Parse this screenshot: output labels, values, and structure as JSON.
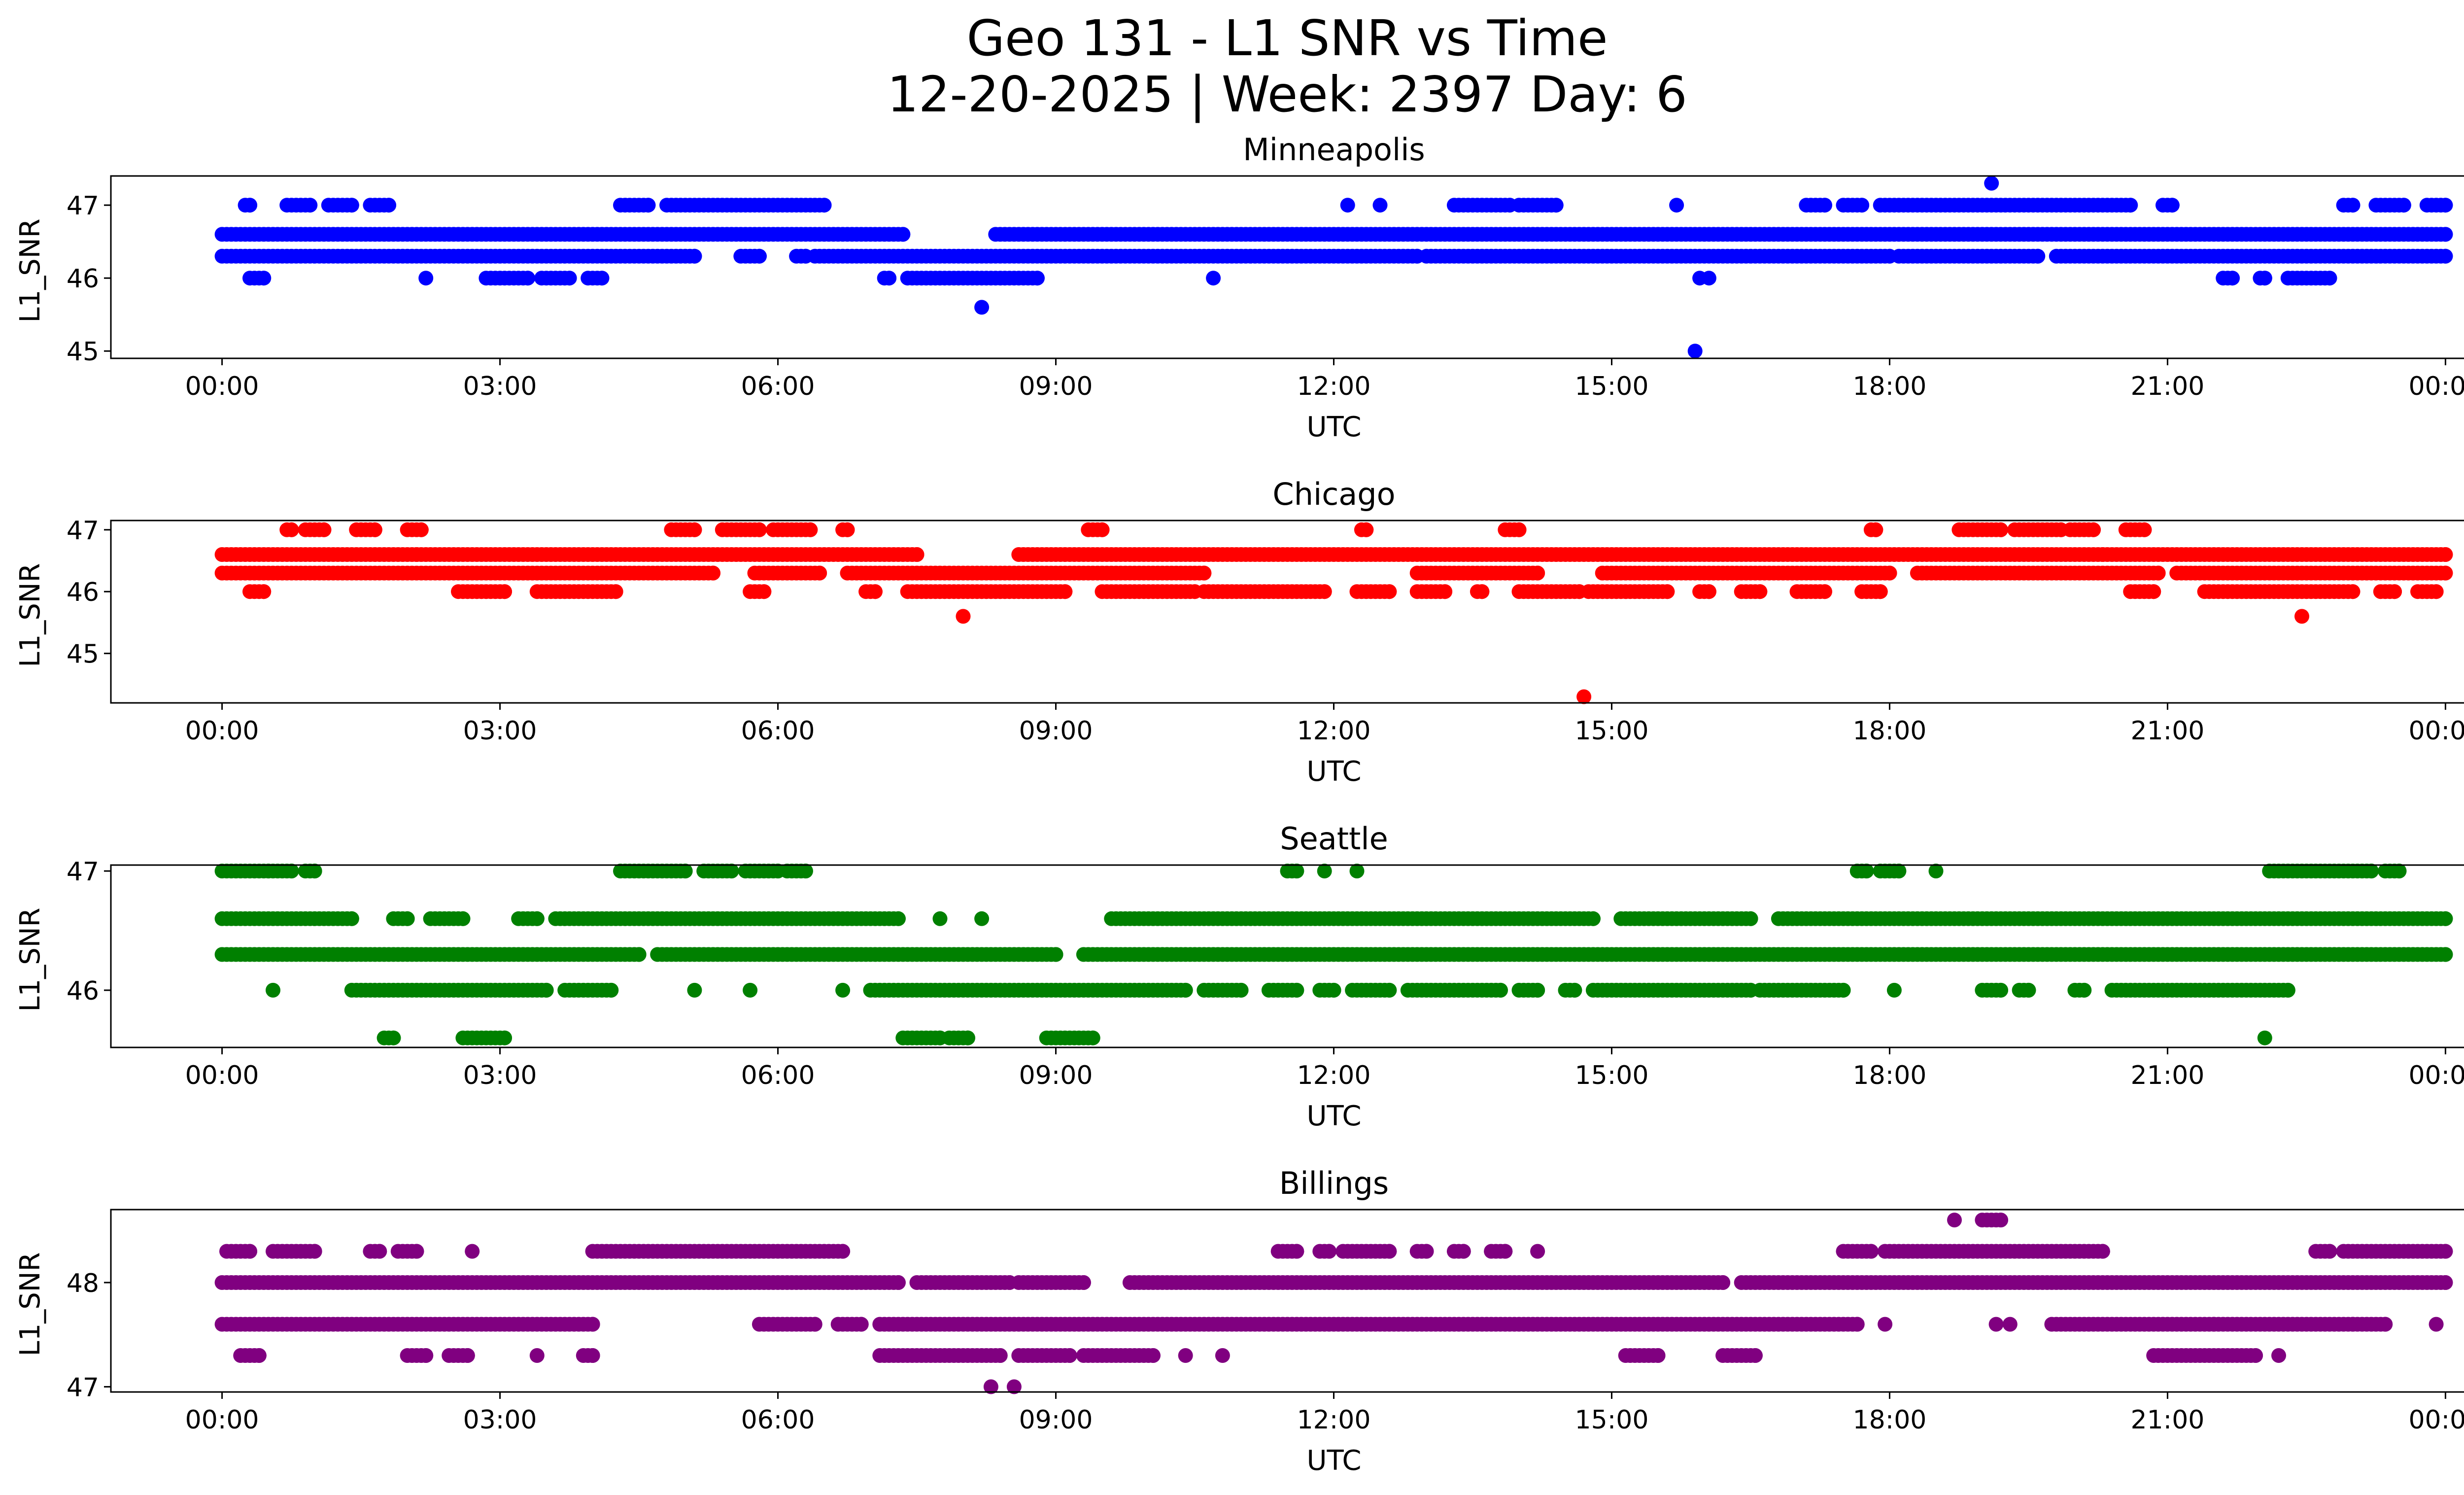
{
  "figure": {
    "title_line1": "Geo 131 - L1 SNR vs Time",
    "title_line2": "12-20-2025 | Week: 2397 Day: 6"
  },
  "chart_data": [
    {
      "type": "scatter",
      "title": "Minneapolis",
      "xlabel": "UTC",
      "ylabel": "L1_SNR",
      "color": "#0000ff",
      "xlim": [
        -1.2,
        25.2
      ],
      "ylim": [
        44.9,
        47.4
      ],
      "xticks": [
        "00:00",
        "03:00",
        "06:00",
        "09:00",
        "12:00",
        "15:00",
        "18:00",
        "21:00",
        "00:00"
      ],
      "yticks": [
        45,
        46,
        47
      ],
      "runs": [
        {
          "y": 46.6,
          "ranges": [
            [
              0.0,
              7.35
            ],
            [
              8.35,
              24.0
            ]
          ]
        },
        {
          "y": 46.3,
          "ranges": [
            [
              0.0,
              5.1
            ],
            [
              5.6,
              5.8
            ],
            [
              6.2,
              6.3
            ],
            [
              6.4,
              12.9
            ],
            [
              13.0,
              18.0
            ],
            [
              18.1,
              19.6
            ],
            [
              19.8,
              24.0
            ]
          ]
        },
        {
          "y": 47.0,
          "ranges": [
            [
              0.25,
              0.3
            ],
            [
              0.7,
              0.95
            ],
            [
              1.15,
              1.4
            ],
            [
              1.6,
              1.8
            ],
            [
              4.3,
              4.6
            ],
            [
              4.8,
              6.5
            ],
            [
              13.3,
              13.9
            ],
            [
              14.0,
              14.4
            ],
            [
              17.1,
              17.3
            ],
            [
              17.5,
              17.7
            ],
            [
              17.9,
              20.6
            ],
            [
              20.95,
              21.05
            ],
            [
              22.9,
              23.0
            ],
            [
              23.25,
              23.55
            ],
            [
              23.8,
              24.0
            ]
          ]
        },
        {
          "y": 46.0,
          "ranges": [
            [
              0.3,
              0.45
            ],
            [
              2.85,
              3.3
            ],
            [
              3.45,
              3.75
            ],
            [
              3.95,
              4.1
            ],
            [
              7.15,
              7.2
            ],
            [
              7.4,
              8.8
            ],
            [
              21.6,
              21.7
            ],
            [
              22.0,
              22.05
            ],
            [
              22.3,
              22.75
            ]
          ]
        }
      ],
      "points": [
        {
          "x": 2.2,
          "y": 46.0
        },
        {
          "x": 10.7,
          "y": 46.0
        },
        {
          "x": 12.15,
          "y": 47.0
        },
        {
          "x": 12.5,
          "y": 47.0
        },
        {
          "x": 15.7,
          "y": 47.0
        },
        {
          "x": 15.95,
          "y": 46.0
        },
        {
          "x": 16.05,
          "y": 46.0
        },
        {
          "x": 8.2,
          "y": 45.6
        },
        {
          "x": 19.1,
          "y": 47.3
        },
        {
          "x": 15.9,
          "y": 45.0
        }
      ]
    },
    {
      "type": "scatter",
      "title": "Chicago",
      "xlabel": "UTC",
      "ylabel": "L1_SNR",
      "color": "#ff0000",
      "xlim": [
        -1.2,
        25.2
      ],
      "ylim": [
        44.2,
        47.15
      ],
      "xticks": [
        "00:00",
        "03:00",
        "06:00",
        "09:00",
        "12:00",
        "15:00",
        "18:00",
        "21:00",
        "00:00"
      ],
      "yticks": [
        45,
        46,
        47
      ],
      "runs": [
        {
          "y": 46.6,
          "ranges": [
            [
              0.0,
              7.5
            ],
            [
              8.6,
              24.0
            ]
          ]
        },
        {
          "y": 46.3,
          "ranges": [
            [
              0.0,
              5.3
            ],
            [
              5.75,
              6.45
            ],
            [
              6.75,
              10.6
            ],
            [
              12.9,
              14.2
            ],
            [
              14.9,
              18.0
            ],
            [
              18.3,
              20.9
            ],
            [
              21.1,
              24.0
            ]
          ]
        },
        {
          "y": 46.0,
          "ranges": [
            [
              0.3,
              0.45
            ],
            [
              2.55,
              3.05
            ],
            [
              3.4,
              4.25
            ],
            [
              5.7,
              5.85
            ],
            [
              6.95,
              7.05
            ],
            [
              7.4,
              9.1
            ],
            [
              9.5,
              10.5
            ],
            [
              10.6,
              11.9
            ],
            [
              12.25,
              12.6
            ],
            [
              12.9,
              13.2
            ],
            [
              13.55,
              13.6
            ],
            [
              14.0,
              14.65
            ],
            [
              14.75,
              15.6
            ],
            [
              15.95,
              16.05
            ],
            [
              16.4,
              16.6
            ],
            [
              17.0,
              17.3
            ],
            [
              17.7,
              17.9
            ],
            [
              20.6,
              20.85
            ],
            [
              21.4,
              23.0
            ],
            [
              23.3,
              23.45
            ],
            [
              23.7,
              23.9
            ]
          ]
        },
        {
          "y": 47.0,
          "ranges": [
            [
              0.7,
              0.75
            ],
            [
              0.9,
              1.1
            ],
            [
              1.45,
              1.65
            ],
            [
              2.0,
              2.15
            ],
            [
              4.85,
              5.1
            ],
            [
              5.4,
              5.8
            ],
            [
              5.95,
              6.35
            ],
            [
              6.7,
              6.75
            ],
            [
              9.35,
              9.5
            ],
            [
              12.3,
              12.35
            ],
            [
              13.85,
              14.0
            ],
            [
              17.8,
              17.85
            ],
            [
              18.75,
              19.2
            ],
            [
              19.35,
              19.85
            ],
            [
              19.95,
              20.2
            ],
            [
              20.55,
              20.75
            ]
          ]
        }
      ],
      "points": [
        {
          "x": 2.1,
          "y": 46.6
        },
        {
          "x": 8.0,
          "y": 45.6
        },
        {
          "x": 22.45,
          "y": 45.6
        },
        {
          "x": 14.7,
          "y": 44.3
        },
        {
          "x": 20.3,
          "y": 46.6
        }
      ]
    },
    {
      "type": "scatter",
      "title": "Seattle",
      "xlabel": "UTC",
      "ylabel": "L1_SNR",
      "color": "#008000",
      "xlim": [
        -1.2,
        25.2
      ],
      "ylim": [
        45.52,
        47.05
      ],
      "xticks": [
        "00:00",
        "03:00",
        "06:00",
        "09:00",
        "12:00",
        "15:00",
        "18:00",
        "21:00",
        "00:00"
      ],
      "yticks": [
        46,
        47
      ],
      "runs": [
        {
          "y": 46.6,
          "ranges": [
            [
              0.0,
              1.4
            ],
            [
              1.85,
              2.0
            ],
            [
              2.25,
              2.6
            ],
            [
              3.2,
              3.4
            ],
            [
              3.6,
              7.3
            ],
            [
              9.6,
              14.8
            ],
            [
              15.1,
              16.5
            ],
            [
              16.8,
              24.0
            ]
          ]
        },
        {
          "y": 46.3,
          "ranges": [
            [
              0.0,
              4.5
            ],
            [
              4.7,
              9.0
            ],
            [
              9.3,
              24.0
            ]
          ]
        },
        {
          "y": 47.0,
          "ranges": [
            [
              0.0,
              0.5
            ],
            [
              0.55,
              0.75
            ],
            [
              0.9,
              1.0
            ],
            [
              4.3,
              5.0
            ],
            [
              5.2,
              5.5
            ],
            [
              5.65,
              6.0
            ],
            [
              6.1,
              6.3
            ],
            [
              11.5,
              11.6
            ],
            [
              17.65,
              17.75
            ],
            [
              17.9,
              18.1
            ],
            [
              22.1,
              23.2
            ],
            [
              23.35,
              23.5
            ]
          ]
        },
        {
          "y": 46.0,
          "ranges": [
            [
              1.4,
              3.5
            ],
            [
              3.7,
              4.2
            ],
            [
              7.0,
              10.4
            ],
            [
              10.6,
              11.0
            ],
            [
              11.3,
              11.6
            ],
            [
              11.85,
              12.0
            ],
            [
              12.2,
              12.6
            ],
            [
              12.8,
              13.8
            ],
            [
              14.0,
              14.2
            ],
            [
              14.5,
              14.6
            ],
            [
              14.8,
              16.5
            ],
            [
              16.6,
              17.5
            ],
            [
              19.0,
              19.2
            ],
            [
              19.4,
              19.5
            ],
            [
              20.0,
              20.1
            ],
            [
              20.4,
              22.3
            ]
          ]
        },
        {
          "y": 45.6,
          "ranges": [
            [
              1.75,
              1.85
            ],
            [
              2.6,
              3.05
            ],
            [
              7.35,
              7.75
            ],
            [
              7.85,
              8.05
            ],
            [
              8.9,
              9.4
            ]
          ]
        }
      ],
      "points": [
        {
          "x": 0.55,
          "y": 46.0
        },
        {
          "x": 8.05,
          "y": 45.6
        },
        {
          "x": 7.75,
          "y": 46.6
        },
        {
          "x": 8.2,
          "y": 46.6
        },
        {
          "x": 5.1,
          "y": 46.0
        },
        {
          "x": 5.7,
          "y": 46.0
        },
        {
          "x": 6.7,
          "y": 46.0
        },
        {
          "x": 11.9,
          "y": 47.0
        },
        {
          "x": 12.25,
          "y": 47.0
        },
        {
          "x": 18.05,
          "y": 46.0
        },
        {
          "x": 18.5,
          "y": 47.0
        },
        {
          "x": 22.05,
          "y": 45.6
        }
      ]
    },
    {
      "type": "scatter",
      "title": "Billings",
      "xlabel": "UTC",
      "ylabel": "L1_SNR",
      "color": "#800080",
      "xlim": [
        -1.2,
        25.2
      ],
      "ylim": [
        46.95,
        48.7
      ],
      "xticks": [
        "00:00",
        "03:00",
        "06:00",
        "09:00",
        "12:00",
        "15:00",
        "18:00",
        "21:00",
        "00:00"
      ],
      "yticks": [
        47,
        48
      ],
      "runs": [
        {
          "y": 48.0,
          "ranges": [
            [
              0.0,
              7.3
            ],
            [
              7.5,
              8.5
            ],
            [
              8.6,
              9.3
            ],
            [
              9.8,
              16.2
            ],
            [
              16.4,
              24.0
            ]
          ]
        },
        {
          "y": 47.6,
          "ranges": [
            [
              0.0,
              4.0
            ],
            [
              5.8,
              6.4
            ],
            [
              6.65,
              6.9
            ],
            [
              7.1,
              17.65
            ],
            [
              19.75,
              21.5
            ],
            [
              21.55,
              23.0
            ],
            [
              23.05,
              23.35
            ]
          ]
        },
        {
          "y": 48.3,
          "ranges": [
            [
              0.05,
              0.3
            ],
            [
              0.55,
              1.0
            ],
            [
              1.6,
              1.7
            ],
            [
              1.9,
              2.1
            ],
            [
              4.0,
              6.7
            ],
            [
              11.4,
              11.6
            ],
            [
              11.85,
              11.95
            ],
            [
              12.1,
              12.6
            ],
            [
              12.9,
              13.0
            ],
            [
              13.3,
              13.4
            ],
            [
              13.7,
              13.85
            ],
            [
              17.5,
              17.8
            ],
            [
              17.95,
              20.3
            ],
            [
              22.6,
              22.75
            ],
            [
              22.9,
              24.0
            ]
          ]
        },
        {
          "y": 47.3,
          "ranges": [
            [
              0.2,
              0.4
            ],
            [
              2.0,
              2.2
            ],
            [
              2.45,
              2.65
            ],
            [
              3.9,
              4.0
            ],
            [
              7.1,
              8.4
            ],
            [
              8.6,
              9.15
            ],
            [
              9.3,
              10.05
            ],
            [
              15.15,
              15.5
            ],
            [
              16.2,
              16.55
            ],
            [
              20.85,
              21.95
            ]
          ]
        },
        {
          "y": 48.6,
          "ranges": [
            [
              19.0,
              19.2
            ]
          ]
        }
      ],
      "points": [
        {
          "x": 2.7,
          "y": 48.3
        },
        {
          "x": 3.4,
          "y": 47.3
        },
        {
          "x": 10.4,
          "y": 47.3
        },
        {
          "x": 10.8,
          "y": 47.3
        },
        {
          "x": 14.2,
          "y": 48.3
        },
        {
          "x": 17.95,
          "y": 47.6
        },
        {
          "x": 19.15,
          "y": 47.6
        },
        {
          "x": 19.3,
          "y": 47.6
        },
        {
          "x": 22.2,
          "y": 47.3
        },
        {
          "x": 23.9,
          "y": 47.6
        },
        {
          "x": 8.3,
          "y": 47.0
        },
        {
          "x": 8.55,
          "y": 47.0
        },
        {
          "x": 18.7,
          "y": 48.6
        }
      ]
    }
  ]
}
